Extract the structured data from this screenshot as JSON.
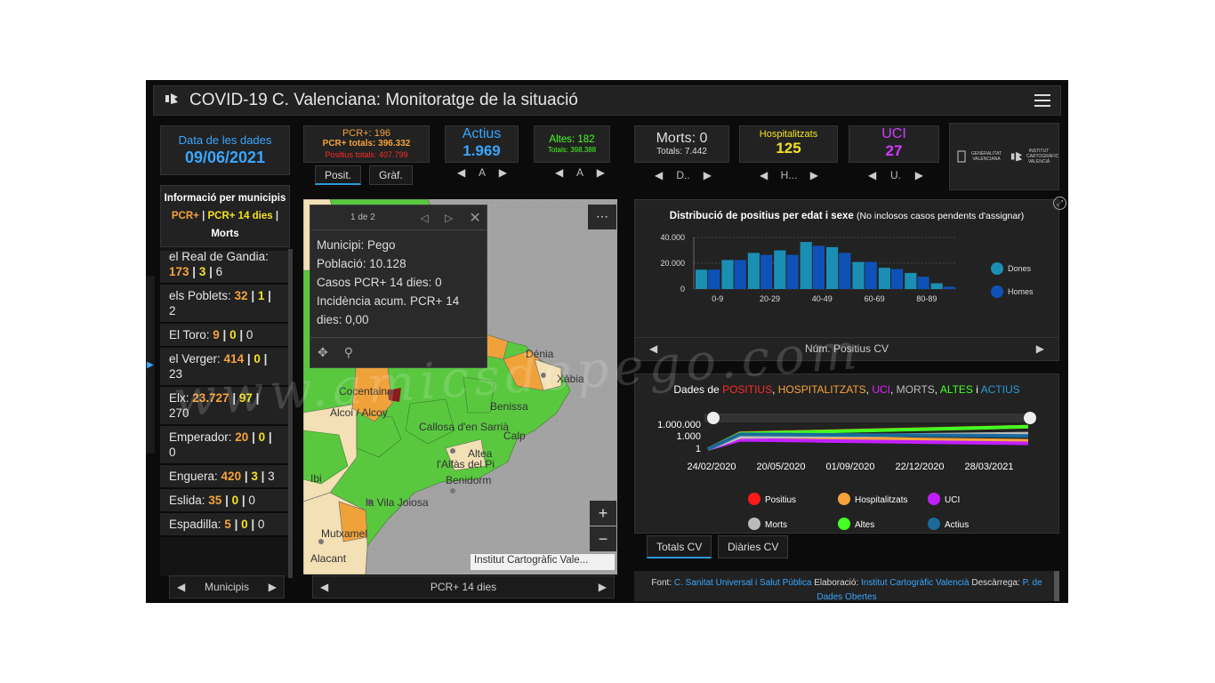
{
  "header": {
    "title": "COVID-19 C. Valenciana: Monitoratge de la situació"
  },
  "data_date": {
    "label": "Data de les dades",
    "value": "09/06/2021"
  },
  "positius": {
    "line1": "PCR+: 196",
    "line2": "PCR+ totals: 396.332",
    "line3": "Positius totals: 407.799",
    "tab_posit": "Posit.",
    "tab_graf": "Gràf."
  },
  "actius": {
    "label": "Actius",
    "value": "1.969",
    "nav_label": "A"
  },
  "altes": {
    "label": "Altes: 182",
    "sub": "Totals: 398.388",
    "nav_label": "A"
  },
  "morts": {
    "label": "Morts: 0",
    "sub": "Totals: 7.442",
    "nav_label": "D.."
  },
  "hospitalitzats": {
    "label": "Hospitalitzats",
    "value": "125",
    "nav_label": "H..."
  },
  "uci": {
    "label": "UCI",
    "value": "27",
    "nav_label": "U."
  },
  "logos": {
    "gva": "GENERALITAT VALENCIANA",
    "icv": "INSTITUT CARTOGRÀFIC VALENCIÀ"
  },
  "municipis": {
    "title": "Informació per municipis",
    "legend_pcr": "PCR+",
    "legend_pcr14": "PCR+ 14 dies",
    "legend_morts": "Morts",
    "items": [
      {
        "name": "el Real de Gandia:",
        "a": "173",
        "b": "3",
        "c": "6"
      },
      {
        "name": "els Poblets:",
        "a": "32",
        "b": "1",
        "c": "2"
      },
      {
        "name": "El Toro:",
        "a": "9",
        "b": "0",
        "c": "0"
      },
      {
        "name": "el Verger:",
        "a": "414",
        "b": "0",
        "c": "23"
      },
      {
        "name": "Elx:",
        "a": "23.727",
        "b": "97",
        "c": "270"
      },
      {
        "name": "Emperador:",
        "a": "20",
        "b": "0",
        "c": "0"
      },
      {
        "name": "Enguera:",
        "a": "420",
        "b": "3",
        "c": "3"
      },
      {
        "name": "Eslida:",
        "a": "35",
        "b": "0",
        "c": "0"
      },
      {
        "name": "Espadilla:",
        "a": "5",
        "b": "0",
        "c": "0"
      }
    ],
    "nav_label": "Municipis"
  },
  "popup": {
    "pager": "1 de 2",
    "lines": [
      "Municipi: Pego",
      "Població: 10.128",
      "Casos PCR+ 14 dies: 0",
      "Incidència acum. PCR+ 14 dies: 0,00"
    ]
  },
  "map": {
    "attribution": "Institut Cartogràfic Vale...",
    "nav_label": "PCR+ 14 dies",
    "zoom_in": "+",
    "zoom_out": "−",
    "places": [
      "Dénia",
      "Xàbia",
      "Alcoi / Alcoy",
      "Callosa d'en Sarrià",
      "Altea",
      "l'Alfàs del Pi",
      "Benidorm",
      "la Vila Joiosa",
      "Alacant",
      "Mutxamel",
      "Ibi",
      "Cocentaina",
      "Benissa",
      "Calp"
    ]
  },
  "age_chart_panel": {
    "title_bold": "Distribució de positius per edat i sexe",
    "title_note": "(No inclosos casos pendents d'assignar)",
    "nav_label": "Núm. Positius CV"
  },
  "evolution_panel": {
    "title_parts": [
      {
        "t": "Dades de ",
        "c": "#ffffff"
      },
      {
        "t": "POSITIUS",
        "c": "#ff2a2a"
      },
      {
        "t": ", ",
        "c": "#ffffff"
      },
      {
        "t": "HOSPITALITZATS",
        "c": "#f5a33b"
      },
      {
        "t": ", ",
        "c": "#ffffff"
      },
      {
        "t": "UCI",
        "c": "#e020ff"
      },
      {
        "t": ", ",
        "c": "#ffffff"
      },
      {
        "t": "MORTS",
        "c": "#bbbbbb"
      },
      {
        "t": ", ",
        "c": "#ffffff"
      },
      {
        "t": "ALTES",
        "c": "#44ff22"
      },
      {
        "t": " i ",
        "c": "#ffffff"
      },
      {
        "t": "ACTIUS",
        "c": "#2a9bd5"
      }
    ],
    "tab_totals": "Totals CV",
    "tab_diaries": "Diàries CV"
  },
  "footer": {
    "font": "Font:",
    "source": "C. Sanitat Universal i Salut Pública",
    "elab": "Elaboració:",
    "elab_by": "Institut Cartogràfic Valencià",
    "download": "Descàrrega:",
    "portal": "P. de Dades Obertes"
  },
  "watermark": "www.amicsdepego.com",
  "chart_data": [
    {
      "type": "bar",
      "title": "Distribució de positius per edat i sexe",
      "categories": [
        "0-9",
        "",
        "20-29",
        "",
        "40-49",
        "",
        "60-69",
        "",
        "80-89",
        ""
      ],
      "x_tick_labels": [
        "0-9",
        "20-29",
        "40-49",
        "60-69",
        "80-89"
      ],
      "series": [
        {
          "name": "Dones",
          "color": "#1a8fb3",
          "values": [
            15000,
            22500,
            28000,
            30000,
            36500,
            32500,
            21000,
            16500,
            12500,
            4500
          ]
        },
        {
          "name": "Homes",
          "color": "#0e52b8",
          "values": [
            15000,
            22500,
            26500,
            26500,
            33500,
            28000,
            21000,
            15500,
            9500,
            1800
          ]
        }
      ],
      "y_ticks": [
        "0",
        "20.000",
        "40.000"
      ],
      "ylim": [
        0,
        40000
      ],
      "legend": "right"
    },
    {
      "type": "line",
      "title": "Dades de POSITIUS, HOSPITALITZATS, UCI, MORTS, ALTES i ACTIUS",
      "x_ticks": [
        "24/02/2020",
        "20/05/2020",
        "01/09/2020",
        "22/12/2020",
        "28/03/2021"
      ],
      "y_ticks": [
        "1",
        "1.000",
        "1.000.000"
      ],
      "yscale": "log",
      "legend": "bottom",
      "series": [
        {
          "name": "Positius",
          "color": "#ff1a1a",
          "values": [
            1,
            10000,
            400000
          ]
        },
        {
          "name": "Hospitalitzats",
          "color": "#f5a33b",
          "values": [
            1,
            1000,
            125
          ]
        },
        {
          "name": "UCI",
          "color": "#c21fff",
          "values": [
            1,
            200,
            27
          ]
        },
        {
          "name": "Morts",
          "color": "#bbbbbb",
          "values": [
            1,
            1000,
            7442
          ]
        },
        {
          "name": "Altes",
          "color": "#44ff22",
          "values": [
            1,
            8000,
            398388
          ]
        },
        {
          "name": "Actius",
          "color": "#1a6a9a",
          "values": [
            1,
            5000,
            1969
          ]
        }
      ]
    }
  ]
}
